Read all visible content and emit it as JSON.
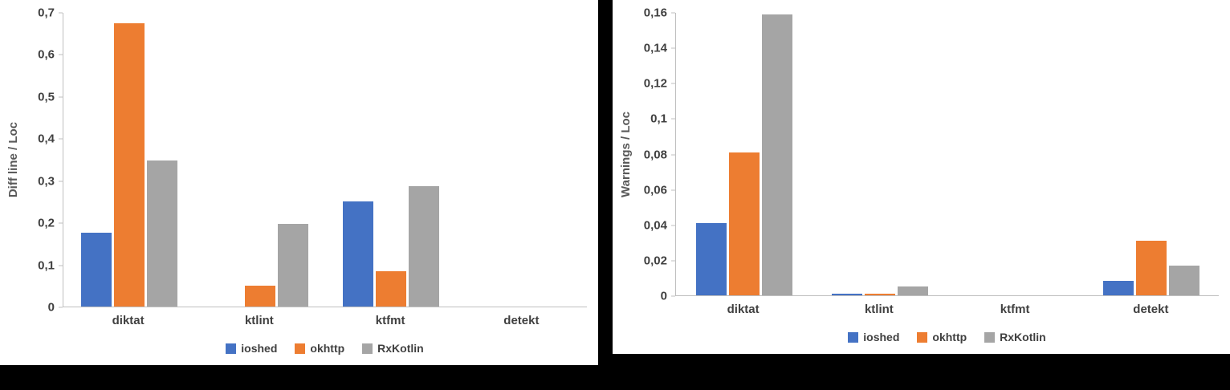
{
  "colors": {
    "ioshed": "#4472C4",
    "okhttp": "#ED7D31",
    "rxkotlin": "#A5A5A5"
  },
  "chart_data": [
    {
      "type": "bar",
      "title": "",
      "ylabel": "Diff line / Loc",
      "xlabel": "",
      "categories": [
        "diktat",
        "ktlint",
        "ktfmt",
        "detekt"
      ],
      "series": [
        {
          "name": "ioshed",
          "color": "#4472C4",
          "values": [
            0.176,
            0,
            0.25,
            0
          ]
        },
        {
          "name": "okhttp",
          "color": "#ED7D31",
          "values": [
            0.675,
            0.05,
            0.085,
            0
          ]
        },
        {
          "name": "RxKotlin",
          "color": "#A5A5A5",
          "values": [
            0.348,
            0.197,
            0.287,
            0
          ]
        }
      ],
      "ylim": [
        0,
        0.7
      ],
      "yticks": [
        "0",
        "0,1",
        "0,2",
        "0,3",
        "0,4",
        "0,5",
        "0,6",
        "0,7"
      ],
      "grid": false,
      "legend_position": "bottom"
    },
    {
      "type": "bar",
      "title": "",
      "ylabel": "Warnings / Loc",
      "xlabel": "",
      "categories": [
        "diktat",
        "ktlint",
        "ktfmt",
        "detekt"
      ],
      "series": [
        {
          "name": "ioshed",
          "color": "#4472C4",
          "values": [
            0.041,
            0.001,
            0,
            0.008
          ]
        },
        {
          "name": "okhttp",
          "color": "#ED7D31",
          "values": [
            0.081,
            0.001,
            0,
            0.031
          ]
        },
        {
          "name": "RxKotlin",
          "color": "#A5A5A5",
          "values": [
            0.159,
            0.005,
            0,
            0.017
          ]
        }
      ],
      "ylim": [
        0,
        0.16
      ],
      "yticks": [
        "0",
        "0,02",
        "0,04",
        "0,06",
        "0,08",
        "0,1",
        "0,12",
        "0,14",
        "0,16"
      ],
      "grid": false,
      "legend_position": "bottom"
    }
  ]
}
